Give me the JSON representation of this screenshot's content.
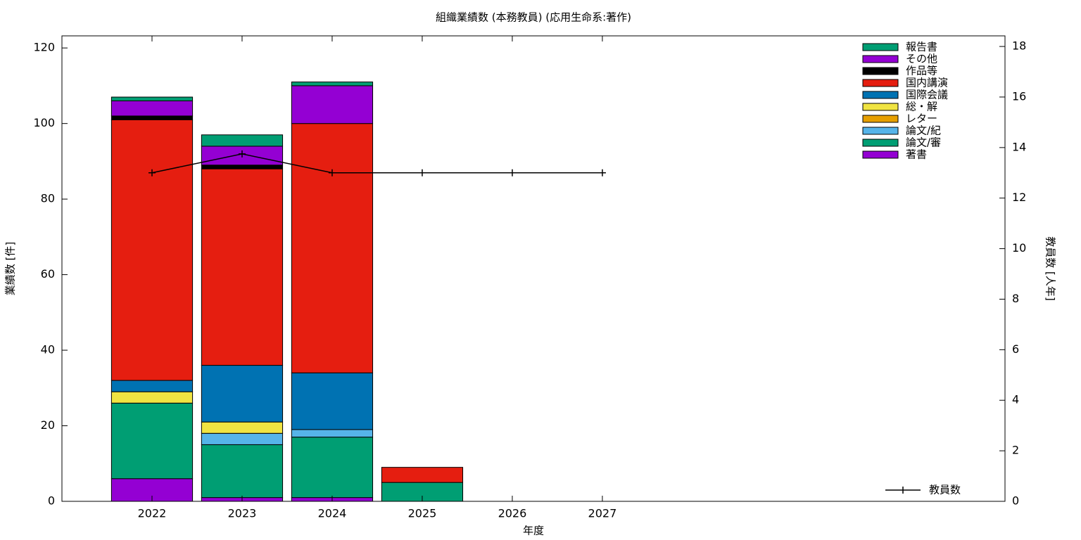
{
  "chart_data": {
    "type": "bar",
    "title": "組織業績数 (本務教員) (応用生命系:著作)",
    "x_label": "年度",
    "y_label": "業績数 [件]",
    "y2_label": "教員数 [人年]",
    "x": [
      2022,
      2023,
      2024,
      2025,
      2026,
      2027
    ],
    "xlim": [
      2021,
      2031.47
    ],
    "xticks": [
      2022,
      2023,
      2024,
      2025,
      2026,
      2027
    ],
    "ylim": [
      0,
      123.2
    ],
    "yticks": [
      0,
      20,
      40,
      60,
      80,
      100,
      120
    ],
    "y2lim": [
      0,
      18.42
    ],
    "y2ticks": [
      0,
      2,
      4,
      6,
      8,
      10,
      12,
      14,
      16,
      18
    ],
    "stacked": true,
    "series": [
      {
        "name": "著書",
        "color": "#9400d3",
        "values": [
          6,
          1,
          1,
          0,
          0,
          0
        ]
      },
      {
        "name": "論文/審",
        "color": "#009e73",
        "values": [
          20,
          14,
          16,
          5,
          0,
          0
        ]
      },
      {
        "name": "論文/紀",
        "color": "#56b4e9",
        "values": [
          0,
          3,
          2,
          0,
          0,
          0
        ]
      },
      {
        "name": "レター",
        "color": "#e69f00",
        "values": [
          0,
          0,
          0,
          0,
          0,
          0
        ]
      },
      {
        "name": "総・解",
        "color": "#f0e442",
        "values": [
          3,
          3,
          0,
          0,
          0,
          0
        ]
      },
      {
        "name": "国際会議",
        "color": "#0072b2",
        "values": [
          3,
          15,
          15,
          0,
          0,
          0
        ]
      },
      {
        "name": "国内講演",
        "color": "#e51e10",
        "values": [
          69,
          52,
          66,
          4,
          0,
          0
        ]
      },
      {
        "name": "作品等",
        "color": "#000000",
        "values": [
          1,
          1,
          0,
          0,
          0,
          0
        ]
      },
      {
        "name": "その他",
        "color": "#9400d3",
        "values": [
          4,
          5,
          10,
          0,
          0,
          0
        ]
      },
      {
        "name": "報告書",
        "color": "#009e73",
        "values": [
          1,
          3,
          1,
          0,
          0,
          0
        ]
      },
      {
        "name": "教員数",
        "type": "line",
        "axis": "y2",
        "color": "#000000",
        "values": [
          13,
          13.75,
          13,
          13,
          13,
          13
        ]
      }
    ]
  }
}
